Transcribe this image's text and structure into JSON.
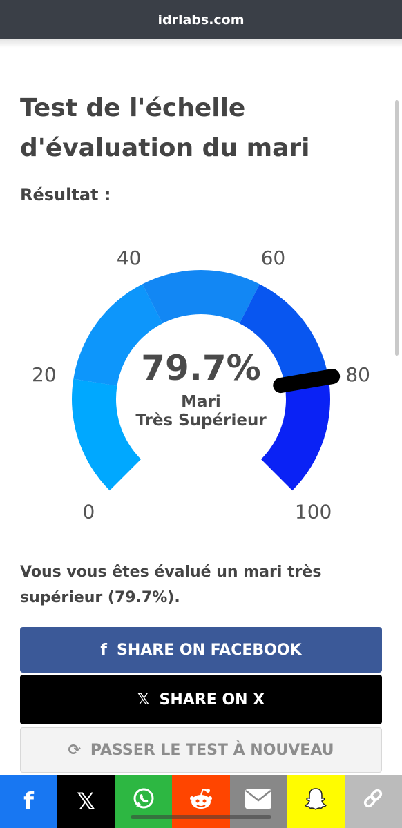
{
  "browser": {
    "domain": "idrlabs.com"
  },
  "page": {
    "title": "Test de l'échelle d'évaluation du mari",
    "result_label": "Résultat :"
  },
  "gauge": {
    "value_text": "79.7%",
    "value": 79.7,
    "min": 0,
    "max": 100,
    "label_line1": "Mari",
    "label_line2": "Très Supérieur",
    "ticks": [
      "0",
      "20",
      "40",
      "60",
      "80",
      "100"
    ],
    "segment_colors": [
      "#00a8ff",
      "#0d96fb",
      "#1287f4",
      "#0856f0",
      "#0a22f5"
    ],
    "needle_color": "#000000"
  },
  "summary": "Vous vous êtes évalué un mari très supérieur (79.7%).",
  "buttons": {
    "facebook": {
      "label": "SHARE ON FACEBOOK",
      "icon": "facebook-icon",
      "color": "#3b5998"
    },
    "x": {
      "label": "SHARE ON X",
      "icon": "x-icon",
      "color": "#000000"
    },
    "retake": {
      "label": "PASSER LE TEST À NOUVEAU",
      "icon": "refresh-icon"
    }
  },
  "share_bar": [
    {
      "name": "facebook",
      "icon": "facebook-icon",
      "color": "#1877f2"
    },
    {
      "name": "x",
      "icon": "x-icon",
      "color": "#000000"
    },
    {
      "name": "whatsapp",
      "icon": "whatsapp-icon",
      "color": "#2db742"
    },
    {
      "name": "reddit",
      "icon": "reddit-icon",
      "color": "#ff4500"
    },
    {
      "name": "email",
      "icon": "email-icon",
      "color": "#888888"
    },
    {
      "name": "snapchat",
      "icon": "snapchat-icon",
      "color": "#fffc00"
    },
    {
      "name": "copy-link",
      "icon": "link-icon",
      "color": "#bbbbbb"
    }
  ]
}
